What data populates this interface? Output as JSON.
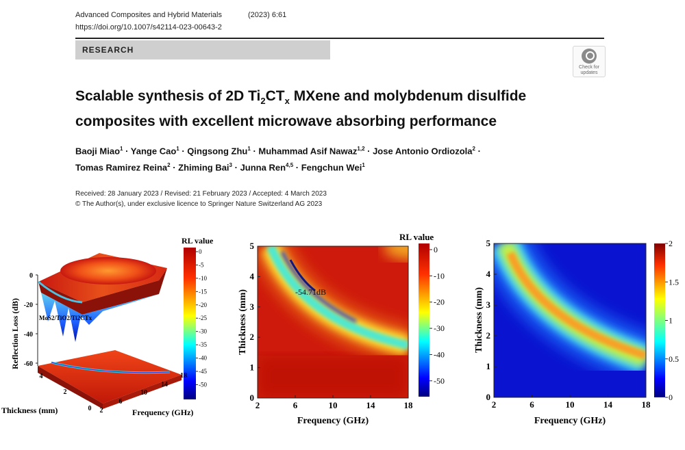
{
  "header": {
    "journal": "Advanced Composites and Hybrid Materials",
    "volume": "(2023) 6:61",
    "doi": "https://doi.org/10.1007/s42114-023-00643-2",
    "section": "RESEARCH",
    "check_updates_line1": "Check for",
    "check_updates_line2": "updates"
  },
  "article": {
    "title_p1": "Scalable synthesis of 2D Ti",
    "title_sub1": "2",
    "title_p2": "CT",
    "title_sub2": "x",
    "title_p3": " MXene and molybdenum disulfide",
    "title_line2": "composites with excellent microwave absorbing performance",
    "authors": [
      {
        "name": "Baoji Miao",
        "aff": "1"
      },
      {
        "name": "Yange Cao",
        "aff": "1"
      },
      {
        "name": "Qingsong Zhu",
        "aff": "1"
      },
      {
        "name": "Muhammad Asif Nawaz",
        "aff": "1,2"
      },
      {
        "name": "Jose Antonio Ordiozola",
        "aff": "2"
      },
      {
        "name": "Tomas Ramirez Reina",
        "aff": "2"
      },
      {
        "name": "Zhiming Bai",
        "aff": "3"
      },
      {
        "name": "Junna Ren",
        "aff": "4,5"
      },
      {
        "name": "Fengchun Wei",
        "aff": "1"
      }
    ],
    "separator": " · ",
    "dates": "Received: 28 January 2023 / Revised: 21 February 2023 / Accepted: 4 March 2023",
    "copyright": "© The Author(s), under exclusive licence to Springer Nature Switzerland AG 2023"
  },
  "chart_data": [
    {
      "type": "surface",
      "legend_title": "RL value",
      "annotation": "MoS2/TiO2/Ti2CTx",
      "zlabel": "Reflection Loss (dB)",
      "ylabel": "Thickness (mm)",
      "xlabel": "Frequency (GHz)",
      "z_ticks": [
        "0",
        "-20",
        "-40",
        "-60"
      ],
      "y_ticks": [
        "4",
        "2",
        "0"
      ],
      "x_ticks": [
        "2",
        "6",
        "10",
        "14",
        "18"
      ],
      "colorbar_ticks": [
        "0",
        "-5",
        "-10",
        "-15",
        "-20",
        "-25",
        "-30",
        "-35",
        "-40",
        "-45",
        "-50"
      ],
      "colorbar_range": [
        -54,
        0
      ],
      "colormap": "jet"
    },
    {
      "type": "heatmap",
      "legend_title": "RL value",
      "annotation": "-54.71dB",
      "xlabel": "Frequency (GHz)",
      "ylabel": "Thickness (mm)",
      "x_ticks": [
        "2",
        "6",
        "10",
        "14",
        "18"
      ],
      "y_ticks": [
        "0",
        "1",
        "2",
        "3",
        "4",
        "5"
      ],
      "xlim": [
        2,
        18
      ],
      "ylim": [
        0,
        5
      ],
      "colorbar_ticks": [
        "0",
        "-10",
        "-20",
        "-30",
        "-40",
        "-50"
      ],
      "colorbar_range": [
        -55,
        0
      ],
      "min_point": {
        "frequency": 7.6,
        "thickness": 3.3,
        "value": -54.71
      },
      "colormap": "jet"
    },
    {
      "type": "heatmap",
      "xlabel": "Frequency (GHz)",
      "ylabel": "Thickness (mm)",
      "x_ticks": [
        "2",
        "6",
        "10",
        "14",
        "18"
      ],
      "y_ticks": [
        "0",
        "1",
        "2",
        "3",
        "4",
        "5"
      ],
      "xlim": [
        2,
        18
      ],
      "ylim": [
        0,
        5
      ],
      "colorbar_ticks": [
        "0",
        "0.5",
        "1",
        "1.5",
        "2"
      ],
      "colorbar_range": [
        0,
        2
      ],
      "colormap": "jet"
    }
  ]
}
